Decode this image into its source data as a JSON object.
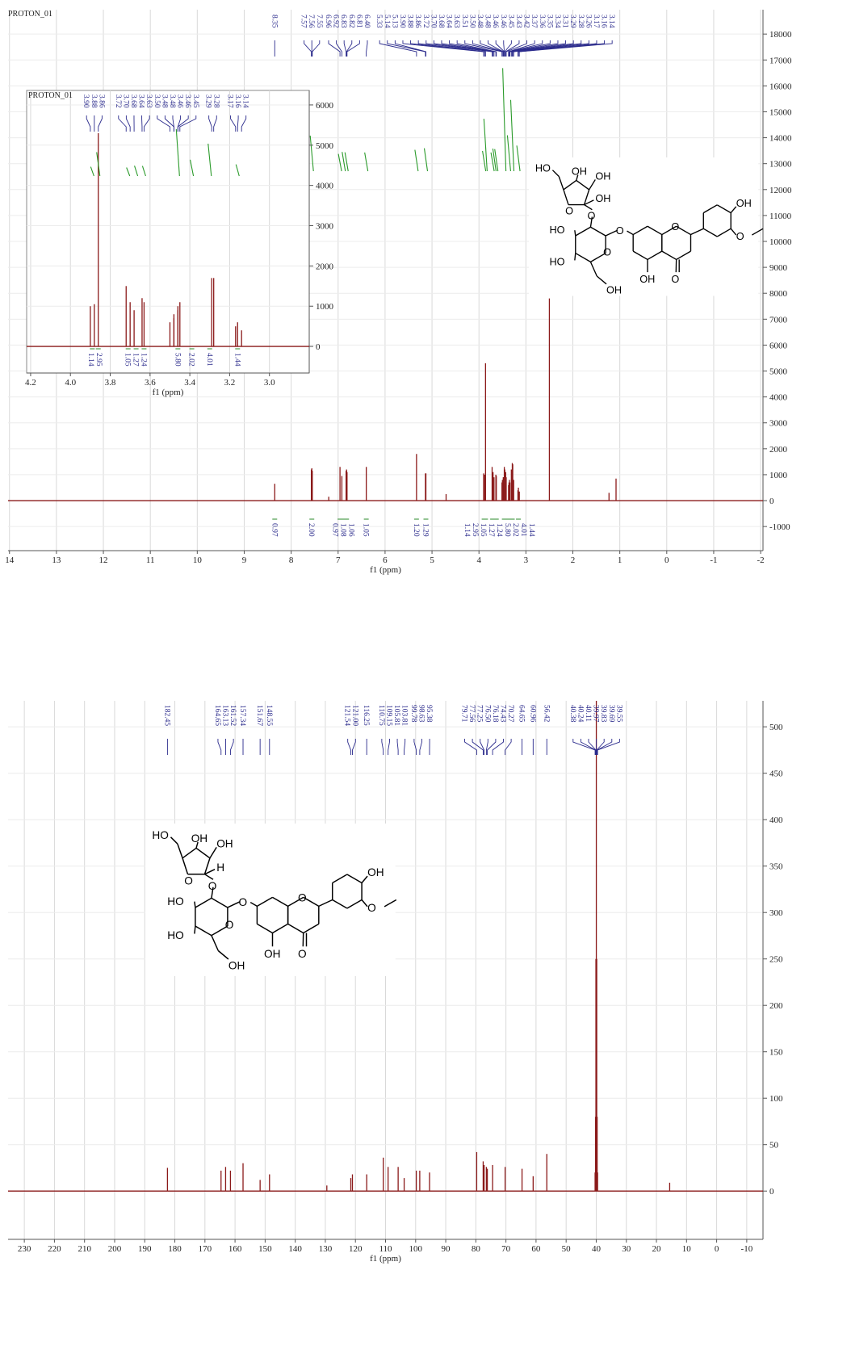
{
  "chart_data": [
    {
      "type": "spectrum",
      "title": "PROTON_01",
      "x_label": "f1 (ppm)",
      "xlim": [
        14.03,
        -2.05
      ],
      "xticks": [
        14,
        13,
        12,
        11,
        10,
        9,
        8,
        7,
        6,
        5,
        4,
        3,
        2,
        1,
        0,
        -1,
        -2
      ],
      "ylim": [
        -1930,
        18940
      ],
      "yticks": [
        -1000,
        0,
        1000,
        2000,
        3000,
        4000,
        5000,
        6000,
        7000,
        8000,
        9000,
        10000,
        11000,
        12000,
        13000,
        14000,
        15000,
        16000,
        17000,
        18000
      ],
      "grid": true,
      "color": "#8b1a1a",
      "x": [
        8.35,
        7.57,
        7.56,
        7.55,
        6.96,
        6.92,
        6.83,
        6.82,
        6.81,
        6.4,
        5.33,
        5.14,
        5.13,
        3.9,
        3.88,
        3.86,
        3.72,
        3.7,
        3.68,
        3.64,
        3.63,
        3.51,
        3.5,
        3.48,
        3.48,
        3.46,
        3.46,
        3.45,
        3.43,
        3.42,
        3.37,
        3.36,
        3.35,
        3.34,
        3.31,
        3.29,
        3.28,
        3.26,
        3.17,
        3.16,
        3.14
      ],
      "peak_labels": [
        "8.35",
        "7.57",
        "7.56",
        "7.55",
        "6.96",
        "6.92",
        "6.83",
        "6.82",
        "6.81",
        "6.40",
        "5.33",
        "5.14",
        "5.13",
        "3.90",
        "3.88",
        "3.86",
        "3.72",
        "3.70",
        "3.68",
        "3.64",
        "3.63",
        "3.51",
        "3.50",
        "3.48",
        "3.48",
        "3.46",
        "3.46",
        "3.45",
        "3.43",
        "3.42",
        "3.37",
        "3.36",
        "3.35",
        "3.34",
        "3.31",
        "3.29",
        "3.28",
        "3.26",
        "3.17",
        "3.16",
        "3.14"
      ],
      "values": [
        650,
        1200,
        1250,
        1150,
        1300,
        950,
        1150,
        1200,
        1100,
        1300,
        1800,
        1050,
        1050,
        1050,
        1000,
        5300,
        1300,
        1100,
        900,
        1000,
        950,
        700,
        800,
        900,
        900,
        1200,
        1300,
        1200,
        1100,
        900,
        600,
        700,
        800,
        700,
        1200,
        1450,
        1400,
        800,
        400,
        500,
        350
      ],
      "other_peaks": {
        "x": [
          7.2,
          4.7,
          2.5,
          1.23,
          1.08
        ],
        "values": [
          150,
          250,
          7800,
          300,
          850
        ]
      },
      "integrals": {
        "x": [
          8.35,
          7.56,
          6.96,
          6.88,
          6.82,
          6.4,
          5.33,
          5.13,
          3.89,
          3.86,
          3.71,
          3.67,
          3.63,
          3.46,
          3.36,
          3.29,
          3.16
        ],
        "values": [
          0.97,
          2.0,
          0.97,
          1.08,
          1.06,
          1.05,
          1.2,
          1.29,
          1.14,
          2.95,
          1.05,
          1.27,
          1.24,
          5.8,
          2.02,
          4.01,
          1.44
        ],
        "value_labels": [
          "0.97",
          "2.00",
          "0.97",
          "1.08",
          "1.06",
          "1.05",
          "1.20",
          "1.29",
          "1.14",
          "2.95",
          "1.05",
          "1.27",
          "1.24",
          "5.80",
          "2.02",
          "4.01",
          "1.44"
        ]
      }
    },
    {
      "type": "spectrum",
      "title": "PROTON_01",
      "x_label": "f1 (ppm)",
      "xlim": [
        4.22,
        2.8
      ],
      "xticks": [
        4.2,
        {
          "value": 4,
          "label": "4.0"
        },
        3.8,
        3.6,
        3.4,
        3.2,
        {
          "value": 3,
          "label": "3.0"
        }
      ],
      "ylim": [
        -660,
        6360
      ],
      "yticks": [
        0,
        1000,
        2000,
        3000,
        4000,
        5000,
        6000
      ],
      "grid": true,
      "color": "#8b1a1a",
      "x": [
        3.9,
        3.88,
        3.86,
        3.72,
        3.7,
        3.68,
        3.64,
        3.63,
        3.5,
        3.48,
        3.48,
        3.46,
        3.46,
        3.45,
        3.29,
        3.28,
        3.17,
        3.16,
        3.14
      ],
      "peak_labels": [
        "3.90",
        "3.88",
        "3.86",
        "3.72",
        "3.70",
        "3.68",
        "3.64",
        "3.63",
        "3.50",
        "3.48",
        "3.48",
        "3.46",
        "3.46",
        "3.45",
        "3.29",
        "3.28",
        "3.17",
        "3.16",
        "3.14"
      ],
      "values": [
        1000,
        1050,
        5300,
        1500,
        1100,
        900,
        1200,
        1100,
        600,
        800,
        700,
        900,
        1000,
        1100,
        1700,
        1700,
        500,
        600,
        400
      ],
      "integrals": {
        "x": [
          3.89,
          3.86,
          3.71,
          3.67,
          3.63,
          3.46,
          3.39,
          3.3,
          3.16
        ],
        "values": [
          1.14,
          2.95,
          1.05,
          1.27,
          1.24,
          5.8,
          2.02,
          4.01,
          1.44
        ],
        "value_labels": [
          "1.14",
          "2.95",
          "1.05",
          "1.27",
          "1.24",
          "5.80",
          "2.02",
          "4.01",
          "1.44"
        ]
      }
    },
    {
      "type": "spectrum",
      "x_label": "f1 (ppm)",
      "xlim": [
        235.4,
        -15.4
      ],
      "xticks": [
        230,
        220,
        210,
        200,
        190,
        180,
        170,
        160,
        150,
        140,
        130,
        120,
        110,
        100,
        90,
        80,
        70,
        60,
        50,
        40,
        30,
        20,
        10,
        0,
        -10
      ],
      "ylim": [
        -52,
        528
      ],
      "yticks": [
        0,
        50,
        100,
        150,
        200,
        250,
        300,
        350,
        400,
        450,
        500
      ],
      "grid": true,
      "color": "#8b1a1a",
      "x": [
        182.45,
        164.65,
        163.13,
        161.52,
        157.34,
        151.67,
        148.55,
        121.54,
        121.0,
        116.25,
        110.75,
        109.15,
        105.81,
        103.81,
        99.78,
        98.63,
        95.38,
        79.71,
        77.56,
        77.25,
        76.5,
        76.18,
        74.43,
        70.27,
        64.65,
        60.96,
        56.42,
        40.38,
        40.24,
        40.11,
        39.97,
        39.83,
        39.69,
        39.55
      ],
      "peak_labels": [
        "182.45",
        "164.65",
        "163.13",
        "161.52",
        "157.34",
        "151.67",
        "148.55",
        "121.54",
        "121.00",
        "116.25",
        "110.75",
        "109.15",
        "105.81",
        "103.81",
        "99.78",
        "98.63",
        "95.38",
        "79.71",
        "77.56",
        "77.25",
        "76.50",
        "76.18",
        "74.43",
        "70.27",
        "64.65",
        "60.96",
        "56.42",
        "40.38",
        "40.24",
        "40.11",
        "39.97",
        "39.83",
        "39.69",
        "39.55"
      ],
      "values": [
        25,
        22,
        26,
        22,
        30,
        12,
        18,
        14,
        18,
        18,
        36,
        26,
        26,
        14,
        22,
        22,
        20,
        42,
        32,
        28,
        26,
        24,
        28,
        26,
        24,
        16,
        40,
        20,
        80,
        250,
        600,
        250,
        80,
        20
      ],
      "other_peaks": {
        "x": [
          129.5,
          15.6
        ],
        "values": [
          6,
          9
        ]
      }
    }
  ],
  "structures": [
    {
      "labels": [
        "HO",
        "OH",
        "OH",
        "OH",
        "O",
        "O",
        "HO",
        "O",
        "O",
        "HO",
        "OH",
        "OH",
        "O",
        "O",
        "OH",
        "O"
      ]
    },
    {
      "labels": [
        "HO",
        "OH",
        "OH",
        "H",
        "O",
        "O",
        "HO",
        "O",
        "O",
        "HO",
        "OH",
        "OH",
        "O",
        "O",
        "OH",
        "O"
      ]
    }
  ]
}
